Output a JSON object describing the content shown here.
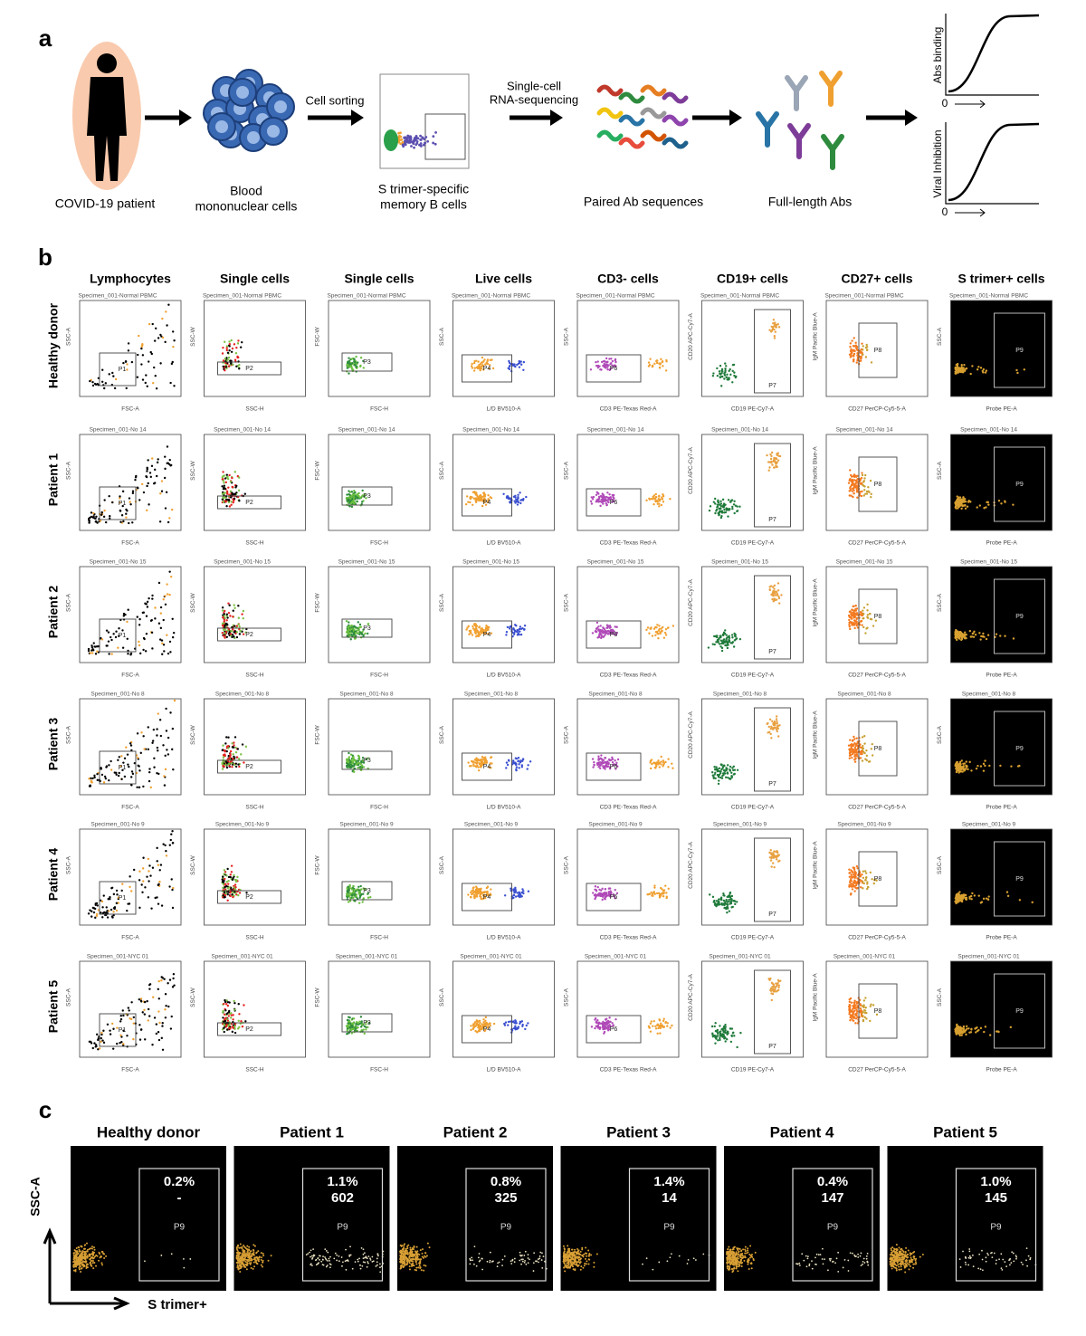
{
  "panel_a": {
    "label": "a",
    "steps": [
      {
        "caption": [
          "COVID-19 patient"
        ]
      },
      {
        "caption": [
          "Blood",
          "mononuclear cells"
        ]
      },
      {
        "caption": [
          "S trimer-specific",
          "memory B cells"
        ]
      },
      {
        "caption": [
          "Paired Ab sequences"
        ]
      },
      {
        "caption": [
          "Full-length Abs"
        ]
      }
    ],
    "arrow_labels": [
      [
        "Cell sorting"
      ],
      [
        "Single-cell",
        "RNA-sequencing"
      ]
    ],
    "graphs": [
      {
        "ylabel": "Abs binding",
        "origin": "0"
      },
      {
        "ylabel": "Viral Inhibition",
        "origin": "0"
      }
    ]
  },
  "panel_b": {
    "label": "b",
    "columns": [
      {
        "title": "Lymphocytes",
        "gate": "P1",
        "xlabel": "FSC-A",
        "ylabel": "SSC-A"
      },
      {
        "title": "Single cells",
        "gate": "P2",
        "xlabel": "SSC-H",
        "ylabel": "SSC-W"
      },
      {
        "title": "Single cells",
        "gate": "P3",
        "xlabel": "FSC-H",
        "ylabel": "FSC-W"
      },
      {
        "title": "Live cells",
        "gate": "P4",
        "xlabel": "L/D BV510-A",
        "ylabel": "SSC-A"
      },
      {
        "title": "CD3- cells",
        "gate": "P6",
        "xlabel": "CD3 PE-Texas Red-A",
        "ylabel": "SSC-A"
      },
      {
        "title": "CD19+ cells",
        "gate": "P7",
        "xlabel": "CD19 PE-Cy7-A",
        "ylabel": "CD20 APC-Cy7-A"
      },
      {
        "title": "CD27+ cells",
        "gate": "P8",
        "xlabel": "CD27 PerCP-Cy5-5-A",
        "ylabel": "IgM Pacific Blue-A"
      },
      {
        "title": "S trimer+ cells",
        "gate": "P9",
        "xlabel": "Probe PE-A",
        "ylabel": "SSC-A"
      }
    ],
    "rows": [
      {
        "name": "Healthy donor",
        "specimen": "Specimen_001-Normal PBMC"
      },
      {
        "name": "Patient 1",
        "specimen": "Specimen_001-No 14"
      },
      {
        "name": "Patient 2",
        "specimen": "Specimen_001-No 15"
      },
      {
        "name": "Patient 3",
        "specimen": "Specimen_001-No 8"
      },
      {
        "name": "Patient 4",
        "specimen": "Specimen_001-No 9"
      },
      {
        "name": "Patient 5",
        "specimen": "Specimen_001-NYC 01"
      }
    ]
  },
  "panel_c": {
    "label": "c",
    "ylabel": "SSC-A",
    "xlabel": "S trimer+",
    "gate": "P9",
    "panels": [
      {
        "name": "Healthy donor",
        "percent": "0.2%",
        "count": "-"
      },
      {
        "name": "Patient 1",
        "percent": "1.1%",
        "count": "602"
      },
      {
        "name": "Patient 2",
        "percent": "0.8%",
        "count": "325"
      },
      {
        "name": "Patient 3",
        "percent": "1.4%",
        "count": "14"
      },
      {
        "name": "Patient 4",
        "percent": "0.4%",
        "count": "147"
      },
      {
        "name": "Patient 5",
        "percent": "1.0%",
        "count": "145"
      }
    ]
  }
}
